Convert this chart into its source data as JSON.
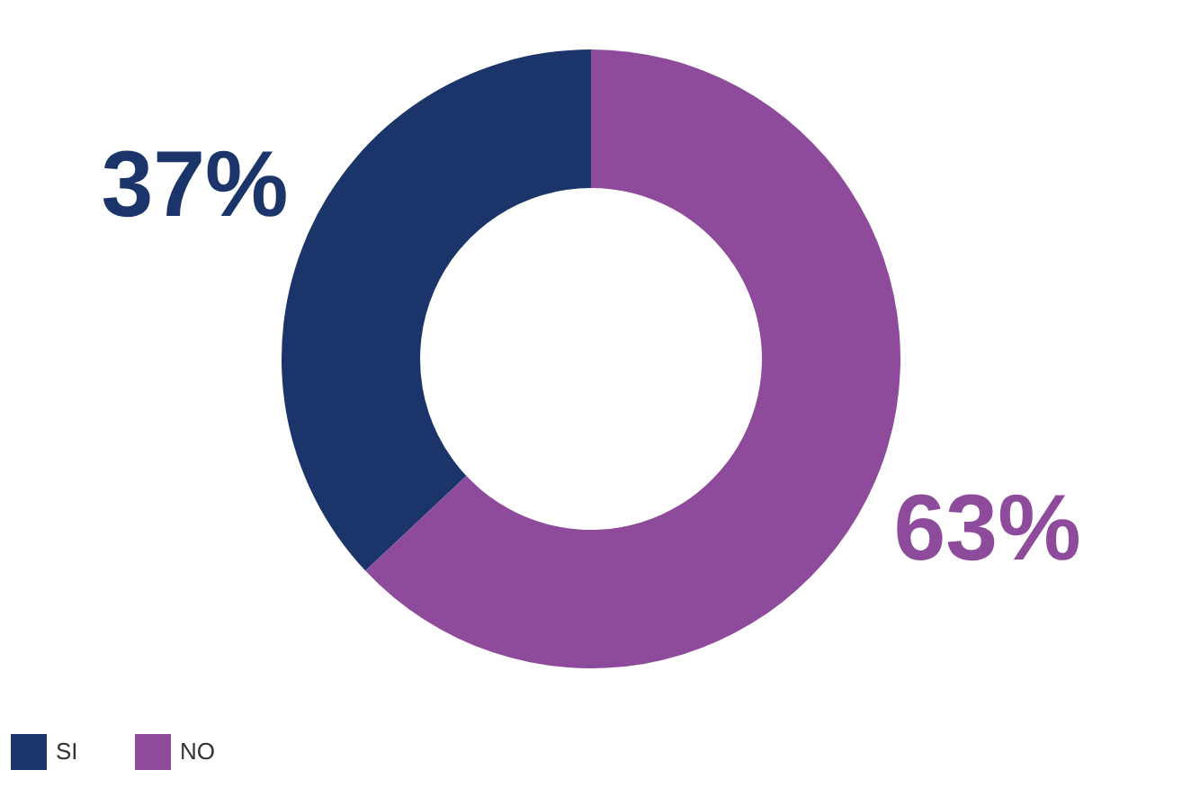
{
  "chart_data": {
    "type": "donut",
    "categories": [
      "SI",
      "NO"
    ],
    "values": [
      37,
      63
    ],
    "colors": [
      "#1b356b",
      "#8f4b9b"
    ],
    "value_labels": [
      "37%",
      "63%"
    ],
    "legend": "bottom"
  }
}
